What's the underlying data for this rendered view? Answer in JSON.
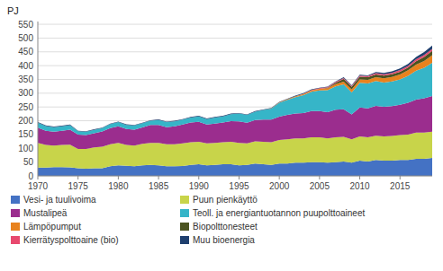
{
  "chart_data": {
    "type": "area",
    "stacked": true,
    "ylabel": "PJ",
    "x": [
      1970,
      1971,
      1972,
      1973,
      1974,
      1975,
      1976,
      1977,
      1978,
      1979,
      1980,
      1981,
      1982,
      1983,
      1984,
      1985,
      1986,
      1987,
      1988,
      1989,
      1990,
      1991,
      1992,
      1993,
      1994,
      1995,
      1996,
      1997,
      1998,
      1999,
      2000,
      2001,
      2002,
      2003,
      2004,
      2005,
      2006,
      2007,
      2008,
      2009,
      2010,
      2011,
      2012,
      2013,
      2014,
      2015,
      2016,
      2017,
      2018,
      2019
    ],
    "series": [
      {
        "name": "Vesi- ja tuulivoima",
        "color": "#4472c4",
        "values": [
          30,
          30,
          32,
          32,
          31,
          28,
          26,
          28,
          28,
          35,
          38,
          37,
          35,
          38,
          40,
          38,
          35,
          35,
          36,
          40,
          42,
          38,
          40,
          42,
          42,
          38,
          40,
          45,
          42,
          40,
          45,
          45,
          48,
          48,
          50,
          50,
          48,
          50,
          52,
          48,
          55,
          52,
          58,
          55,
          55,
          58,
          58,
          62,
          62,
          65
        ]
      },
      {
        "name": "Puun pienkäyttö",
        "color": "#c8d44a",
        "values": [
          90,
          82,
          78,
          80,
          82,
          70,
          72,
          75,
          78,
          80,
          82,
          75,
          75,
          78,
          80,
          82,
          80,
          80,
          82,
          82,
          82,
          80,
          80,
          80,
          82,
          82,
          78,
          80,
          82,
          82,
          85,
          88,
          88,
          88,
          90,
          90,
          88,
          90,
          90,
          85,
          88,
          88,
          88,
          88,
          90,
          90,
          92,
          95,
          95,
          95
        ]
      },
      {
        "name": "Mustalipeä",
        "color": "#9b2d8e",
        "values": [
          55,
          52,
          50,
          52,
          55,
          52,
          50,
          52,
          55,
          58,
          60,
          58,
          58,
          60,
          65,
          65,
          62,
          65,
          68,
          72,
          72,
          68,
          70,
          72,
          75,
          78,
          75,
          78,
          80,
          82,
          85,
          88,
          90,
          92,
          95,
          95,
          95,
          100,
          100,
          90,
          105,
          105,
          108,
          108,
          108,
          110,
          115,
          120,
          125,
          130
        ]
      },
      {
        "name": "Teoll. ja energiantuotannon puupolttoaineet",
        "color": "#36b5c8",
        "values": [
          18,
          17,
          17,
          16,
          16,
          12,
          12,
          12,
          12,
          15,
          15,
          15,
          15,
          15,
          15,
          18,
          18,
          18,
          18,
          18,
          20,
          20,
          22,
          22,
          25,
          28,
          28,
          30,
          35,
          40,
          50,
          55,
          60,
          65,
          70,
          75,
          80,
          85,
          90,
          80,
          90,
          90,
          90,
          88,
          90,
          92,
          98,
          105,
          110,
          120
        ]
      },
      {
        "name": "Lämpöpumput",
        "color": "#e8821e",
        "values": [
          0,
          0,
          0,
          0,
          0,
          0,
          0,
          0,
          0,
          0,
          0,
          0,
          0,
          0,
          0,
          0,
          0,
          0,
          0,
          0,
          0,
          0,
          0,
          0,
          0,
          0,
          0,
          0,
          0,
          1,
          2,
          2,
          3,
          4,
          5,
          6,
          7,
          8,
          10,
          10,
          12,
          13,
          14,
          15,
          16,
          18,
          20,
          22,
          25,
          28
        ]
      },
      {
        "name": "Biopolttonesteet",
        "color": "#4b5320",
        "values": [
          0,
          0,
          0,
          0,
          0,
          0,
          0,
          0,
          0,
          0,
          0,
          0,
          0,
          0,
          0,
          0,
          0,
          0,
          0,
          0,
          0,
          0,
          0,
          0,
          0,
          0,
          0,
          0,
          0,
          0,
          0,
          0,
          0,
          0,
          0,
          0,
          2,
          5,
          10,
          10,
          10,
          10,
          10,
          10,
          10,
          10,
          10,
          12,
          14,
          15
        ]
      },
      {
        "name": "Kierrätyspolttoaine (bio)",
        "color": "#e8496e",
        "values": [
          0,
          0,
          0,
          0,
          0,
          0,
          0,
          0,
          0,
          0,
          0,
          0,
          0,
          0,
          0,
          0,
          0,
          0,
          0,
          0,
          0,
          0,
          0,
          0,
          0,
          0,
          0,
          0,
          0,
          0,
          0,
          0,
          0,
          1,
          2,
          2,
          2,
          3,
          3,
          3,
          4,
          4,
          5,
          5,
          5,
          6,
          6,
          7,
          8,
          8
        ]
      },
      {
        "name": "Muu bioenergia",
        "color": "#1f3f6e",
        "values": [
          2,
          2,
          2,
          2,
          2,
          2,
          2,
          2,
          2,
          2,
          2,
          2,
          2,
          2,
          2,
          2,
          2,
          2,
          2,
          2,
          2,
          2,
          2,
          2,
          2,
          2,
          2,
          2,
          2,
          2,
          2,
          2,
          2,
          2,
          2,
          2,
          2,
          2,
          3,
          3,
          3,
          3,
          4,
          5,
          5,
          6,
          7,
          8,
          10,
          12
        ]
      }
    ],
    "xlim": [
      1970,
      2019
    ],
    "xticks": [
      1970,
      1975,
      1980,
      1985,
      1990,
      1995,
      2000,
      2005,
      2010,
      2015
    ],
    "ylim": [
      0,
      560
    ],
    "yticks": [
      0,
      50,
      100,
      150,
      200,
      250,
      300,
      350,
      400,
      450,
      500,
      550
    ],
    "grid": true,
    "legend": "bottom"
  }
}
